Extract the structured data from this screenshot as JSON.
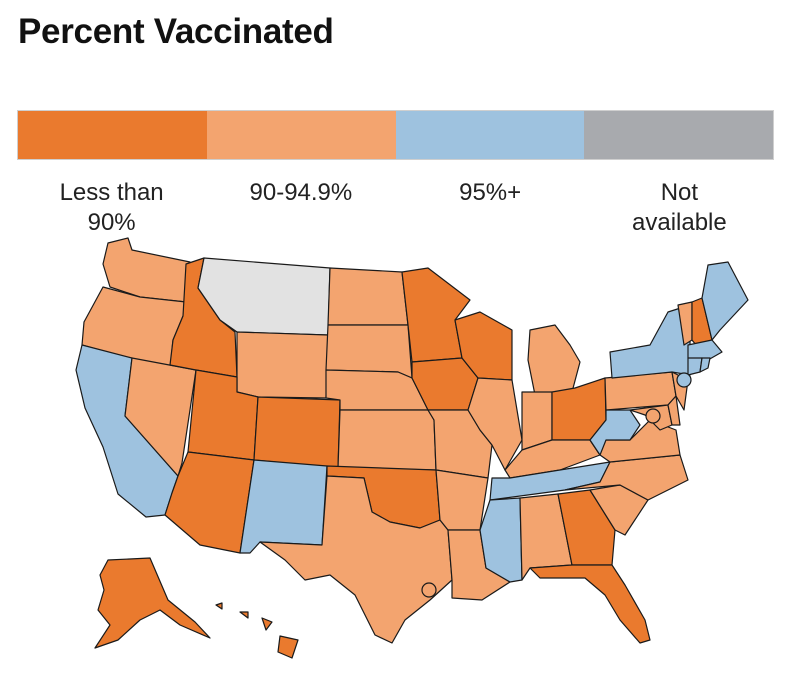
{
  "title": "Percent Vaccinated",
  "legend": [
    {
      "label": "Less than\n90%",
      "color": "#ea7a2e",
      "key": "low"
    },
    {
      "label": "90-94.9%",
      "color": "#f3a46f",
      "key": "mid"
    },
    {
      "label": "95%+",
      "color": "#9ec2df",
      "key": "high"
    },
    {
      "label": "Not\navailable",
      "color": "#a8aaae",
      "key": "na"
    }
  ],
  "state_status": {
    "WA": "mid",
    "OR": "mid",
    "CA": "high",
    "NV": "mid",
    "ID": "low",
    "MT": "na",
    "WY": "mid",
    "UT": "low",
    "AZ": "low",
    "CO": "low",
    "NM": "high",
    "ND": "mid",
    "SD": "mid",
    "NE": "mid",
    "KS": "mid",
    "OK": "low",
    "TX": "mid",
    "MN": "low",
    "IA": "low",
    "MO": "mid",
    "AR": "mid",
    "LA": "mid",
    "WI": "low",
    "IL": "mid",
    "MI": "mid",
    "IN": "mid",
    "OH": "low",
    "KY": "mid",
    "TN": "high",
    "MS": "high",
    "AL": "mid",
    "GA": "low",
    "FL": "low",
    "SC": "mid",
    "NC": "mid",
    "VA": "mid",
    "WV": "high",
    "PA": "mid",
    "NY": "high",
    "VT": "mid",
    "NH": "low",
    "ME": "high",
    "MA": "high",
    "CT": "high",
    "RI": "high",
    "NJ": "mid",
    "DE": "mid",
    "MD": "mid",
    "AK": "low",
    "HI": "low"
  },
  "map_colors": {
    "na_fill": "#e2e2e2"
  }
}
